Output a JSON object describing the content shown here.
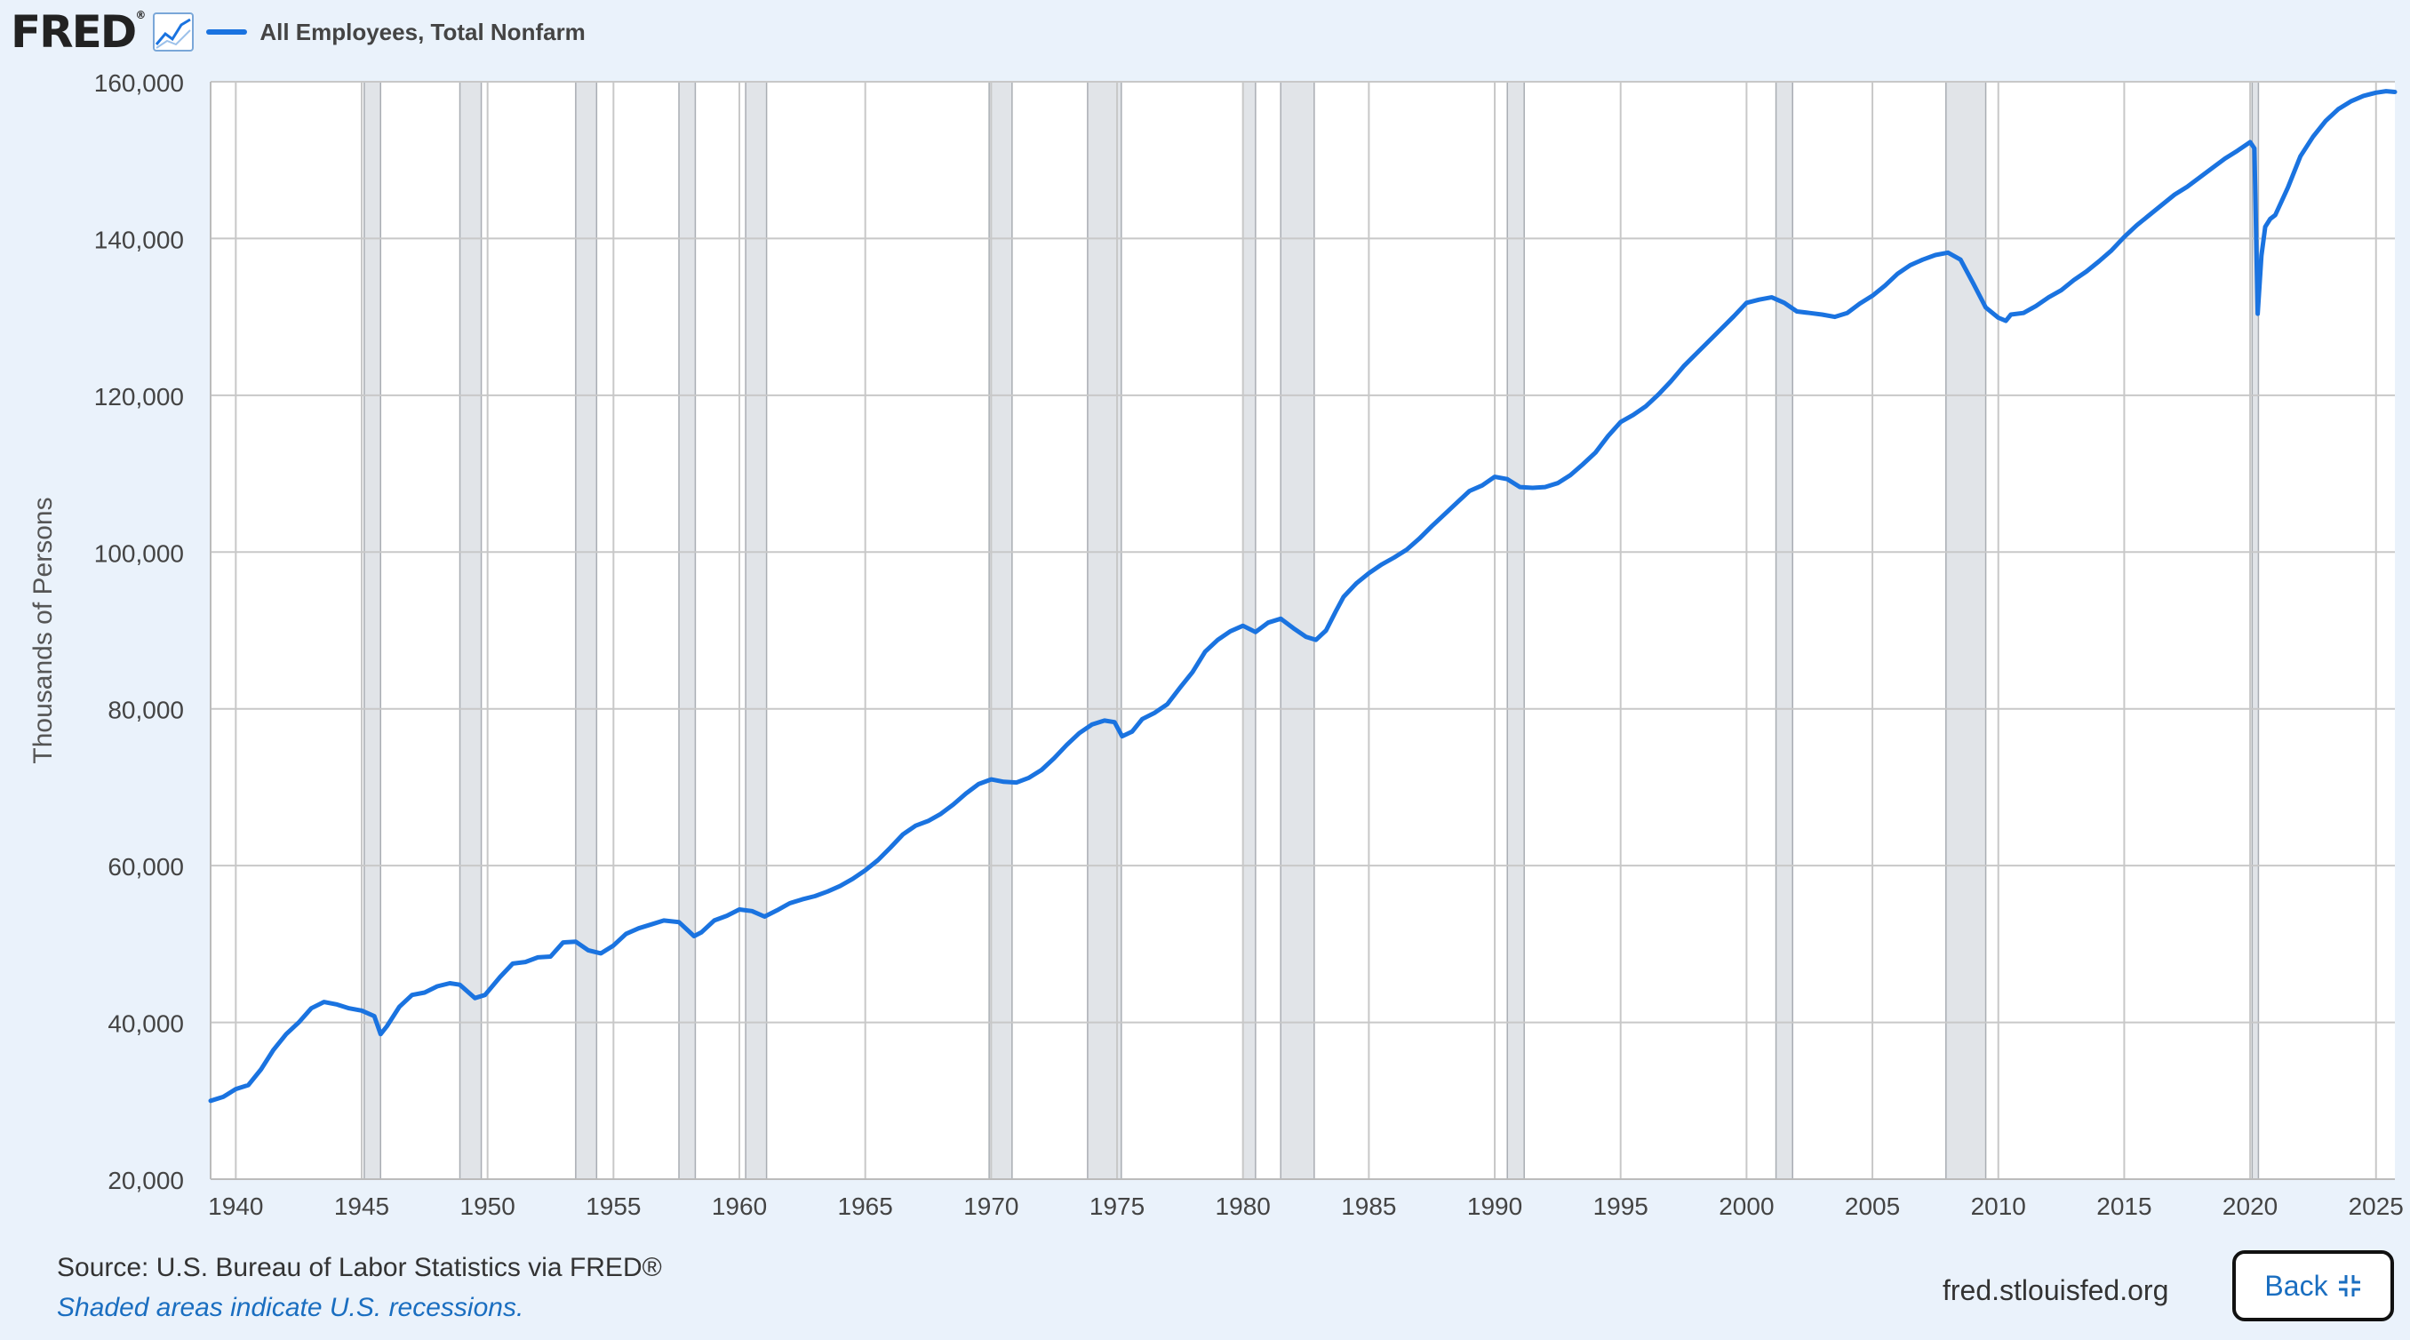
{
  "header": {
    "logo_text": "FRED",
    "logo_mark": "®",
    "legend_label": "All Employees, Total Nonfarm"
  },
  "colors": {
    "series": "#1a73e0",
    "recession": "#e1e4e8",
    "grid": "#c8c8c8",
    "plot_bg": "#ffffff",
    "page_bg": "#eaf2fb"
  },
  "icons": {
    "logo_graph": "line-graph-icon",
    "back": "collapse-icon"
  },
  "footer": {
    "source": "Source: U.S. Bureau of Labor Statistics via FRED®",
    "note": "Shaded areas indicate U.S. recessions.",
    "url": "fred.stlouisfed.org",
    "back_label": "Back"
  },
  "chart_data": {
    "type": "line",
    "title": "",
    "xlabel": "",
    "ylabel": "Thousands of Persons",
    "xlim": [
      1939.0,
      2025.75
    ],
    "ylim": [
      20000,
      160000
    ],
    "x_ticks": [
      "1940",
      "1945",
      "1950",
      "1955",
      "1960",
      "1965",
      "1970",
      "1975",
      "1980",
      "1985",
      "1990",
      "1995",
      "2000",
      "2005",
      "2010",
      "2015",
      "2020",
      "2025"
    ],
    "y_ticks": [
      "20,000",
      "40,000",
      "60,000",
      "80,000",
      "100,000",
      "120,000",
      "140,000",
      "160,000"
    ],
    "grid": true,
    "legend": "top-left",
    "recessions": [
      [
        1945.1,
        1945.75
      ],
      [
        1948.9,
        1949.75
      ],
      [
        1953.5,
        1954.33
      ],
      [
        1957.6,
        1958.25
      ],
      [
        1960.25,
        1961.08
      ],
      [
        1969.92,
        1970.83
      ],
      [
        1973.83,
        1975.17
      ],
      [
        1980.0,
        1980.5
      ],
      [
        1981.5,
        1982.83
      ],
      [
        1990.5,
        1991.17
      ],
      [
        2001.17,
        2001.83
      ],
      [
        2007.92,
        2009.5
      ],
      [
        2020.08,
        2020.33
      ]
    ],
    "series": [
      {
        "name": "All Employees, Total Nonfarm",
        "points": [
          [
            1939.0,
            30000
          ],
          [
            1939.5,
            30500
          ],
          [
            1940.0,
            31500
          ],
          [
            1940.5,
            32000
          ],
          [
            1941.0,
            34000
          ],
          [
            1941.5,
            36500
          ],
          [
            1942.0,
            38500
          ],
          [
            1942.5,
            40000
          ],
          [
            1943.0,
            41800
          ],
          [
            1943.5,
            42600
          ],
          [
            1944.0,
            42300
          ],
          [
            1944.5,
            41800
          ],
          [
            1945.0,
            41500
          ],
          [
            1945.5,
            40800
          ],
          [
            1945.75,
            38500
          ],
          [
            1946.0,
            39500
          ],
          [
            1946.5,
            42000
          ],
          [
            1947.0,
            43500
          ],
          [
            1947.5,
            43800
          ],
          [
            1948.0,
            44600
          ],
          [
            1948.5,
            45000
          ],
          [
            1948.9,
            44800
          ],
          [
            1949.5,
            43100
          ],
          [
            1949.9,
            43500
          ],
          [
            1950.5,
            45800
          ],
          [
            1951.0,
            47500
          ],
          [
            1951.5,
            47700
          ],
          [
            1952.0,
            48300
          ],
          [
            1952.5,
            48400
          ],
          [
            1953.0,
            50200
          ],
          [
            1953.5,
            50300
          ],
          [
            1954.0,
            49200
          ],
          [
            1954.5,
            48800
          ],
          [
            1955.0,
            49800
          ],
          [
            1955.5,
            51300
          ],
          [
            1956.0,
            52000
          ],
          [
            1956.5,
            52500
          ],
          [
            1957.0,
            53000
          ],
          [
            1957.6,
            52800
          ],
          [
            1958.2,
            51000
          ],
          [
            1958.5,
            51500
          ],
          [
            1959.0,
            53000
          ],
          [
            1959.5,
            53600
          ],
          [
            1960.0,
            54400
          ],
          [
            1960.5,
            54200
          ],
          [
            1961.0,
            53500
          ],
          [
            1961.5,
            54300
          ],
          [
            1962.0,
            55200
          ],
          [
            1962.5,
            55700
          ],
          [
            1963.0,
            56100
          ],
          [
            1963.5,
            56700
          ],
          [
            1964.0,
            57400
          ],
          [
            1964.5,
            58300
          ],
          [
            1965.0,
            59400
          ],
          [
            1965.5,
            60700
          ],
          [
            1966.0,
            62300
          ],
          [
            1966.5,
            64000
          ],
          [
            1967.0,
            65100
          ],
          [
            1967.5,
            65700
          ],
          [
            1968.0,
            66600
          ],
          [
            1968.5,
            67800
          ],
          [
            1969.0,
            69200
          ],
          [
            1969.5,
            70400
          ],
          [
            1970.0,
            71000
          ],
          [
            1970.5,
            70700
          ],
          [
            1971.0,
            70600
          ],
          [
            1971.5,
            71200
          ],
          [
            1972.0,
            72200
          ],
          [
            1972.5,
            73700
          ],
          [
            1973.0,
            75400
          ],
          [
            1973.5,
            76900
          ],
          [
            1974.0,
            78000
          ],
          [
            1974.5,
            78500
          ],
          [
            1974.9,
            78300
          ],
          [
            1975.2,
            76500
          ],
          [
            1975.6,
            77100
          ],
          [
            1976.0,
            78700
          ],
          [
            1976.5,
            79500
          ],
          [
            1977.0,
            80600
          ],
          [
            1977.5,
            82700
          ],
          [
            1978.0,
            84700
          ],
          [
            1978.5,
            87300
          ],
          [
            1979.0,
            88800
          ],
          [
            1979.5,
            89900
          ],
          [
            1980.0,
            90600
          ],
          [
            1980.5,
            89800
          ],
          [
            1981.0,
            91000
          ],
          [
            1981.5,
            91500
          ],
          [
            1982.0,
            90300
          ],
          [
            1982.5,
            89200
          ],
          [
            1982.9,
            88800
          ],
          [
            1983.3,
            90000
          ],
          [
            1983.7,
            92500
          ],
          [
            1984.0,
            94300
          ],
          [
            1984.5,
            96000
          ],
          [
            1985.0,
            97300
          ],
          [
            1985.5,
            98400
          ],
          [
            1986.0,
            99300
          ],
          [
            1986.5,
            100300
          ],
          [
            1987.0,
            101700
          ],
          [
            1987.5,
            103300
          ],
          [
            1988.0,
            104800
          ],
          [
            1988.5,
            106300
          ],
          [
            1989.0,
            107800
          ],
          [
            1989.5,
            108500
          ],
          [
            1990.0,
            109600
          ],
          [
            1990.5,
            109300
          ],
          [
            1991.0,
            108300
          ],
          [
            1991.5,
            108200
          ],
          [
            1992.0,
            108300
          ],
          [
            1992.5,
            108800
          ],
          [
            1993.0,
            109800
          ],
          [
            1993.5,
            111200
          ],
          [
            1994.0,
            112700
          ],
          [
            1994.5,
            114800
          ],
          [
            1995.0,
            116600
          ],
          [
            1995.5,
            117500
          ],
          [
            1996.0,
            118600
          ],
          [
            1996.5,
            120100
          ],
          [
            1997.0,
            121800
          ],
          [
            1997.5,
            123700
          ],
          [
            1998.0,
            125300
          ],
          [
            1998.5,
            126900
          ],
          [
            1999.0,
            128500
          ],
          [
            1999.5,
            130100
          ],
          [
            2000.0,
            131800
          ],
          [
            2000.5,
            132200
          ],
          [
            2001.0,
            132500
          ],
          [
            2001.5,
            131800
          ],
          [
            2002.0,
            130700
          ],
          [
            2002.5,
            130500
          ],
          [
            2003.0,
            130300
          ],
          [
            2003.5,
            130000
          ],
          [
            2004.0,
            130500
          ],
          [
            2004.5,
            131700
          ],
          [
            2005.0,
            132700
          ],
          [
            2005.5,
            134000
          ],
          [
            2006.0,
            135500
          ],
          [
            2006.5,
            136600
          ],
          [
            2007.0,
            137300
          ],
          [
            2007.5,
            137900
          ],
          [
            2008.0,
            138200
          ],
          [
            2008.5,
            137300
          ],
          [
            2009.0,
            134300
          ],
          [
            2009.5,
            131200
          ],
          [
            2010.0,
            129900
          ],
          [
            2010.3,
            129500
          ],
          [
            2010.5,
            130300
          ],
          [
            2011.0,
            130500
          ],
          [
            2011.5,
            131400
          ],
          [
            2012.0,
            132500
          ],
          [
            2012.5,
            133400
          ],
          [
            2013.0,
            134700
          ],
          [
            2013.5,
            135800
          ],
          [
            2014.0,
            137100
          ],
          [
            2014.5,
            138500
          ],
          [
            2015.0,
            140200
          ],
          [
            2015.5,
            141700
          ],
          [
            2016.0,
            143000
          ],
          [
            2016.5,
            144300
          ],
          [
            2017.0,
            145600
          ],
          [
            2017.5,
            146600
          ],
          [
            2018.0,
            147800
          ],
          [
            2018.5,
            149000
          ],
          [
            2019.0,
            150200
          ],
          [
            2019.5,
            151200
          ],
          [
            2020.0,
            152300
          ],
          [
            2020.17,
            151500
          ],
          [
            2020.3,
            130400
          ],
          [
            2020.45,
            137800
          ],
          [
            2020.6,
            141500
          ],
          [
            2020.8,
            142500
          ],
          [
            2021.0,
            143000
          ],
          [
            2021.5,
            146500
          ],
          [
            2022.0,
            150500
          ],
          [
            2022.5,
            153000
          ],
          [
            2023.0,
            155000
          ],
          [
            2023.5,
            156500
          ],
          [
            2024.0,
            157500
          ],
          [
            2024.5,
            158200
          ],
          [
            2025.0,
            158600
          ],
          [
            2025.4,
            158800
          ],
          [
            2025.75,
            158700
          ]
        ]
      }
    ]
  }
}
